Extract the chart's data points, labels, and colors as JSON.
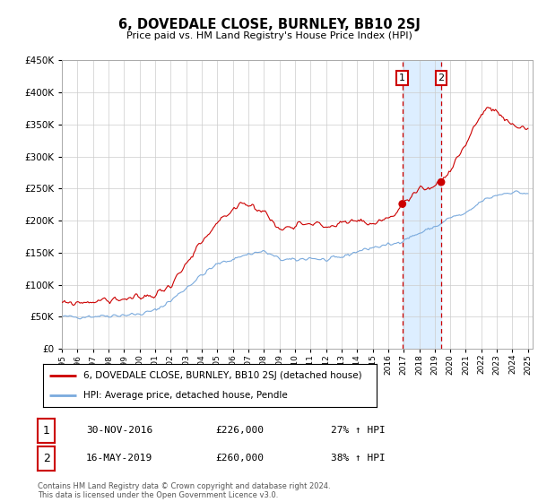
{
  "title": "6, DOVEDALE CLOSE, BURNLEY, BB10 2SJ",
  "subtitle": "Price paid vs. HM Land Registry's House Price Index (HPI)",
  "red_label": "6, DOVEDALE CLOSE, BURNLEY, BB10 2SJ (detached house)",
  "blue_label": "HPI: Average price, detached house, Pendle",
  "transaction1_date": "30-NOV-2016",
  "transaction1_price": 226000,
  "transaction1_hpi": "27% ↑ HPI",
  "transaction2_date": "16-MAY-2019",
  "transaction2_price": 260000,
  "transaction2_hpi": "38% ↑ HPI",
  "footer": "Contains HM Land Registry data © Crown copyright and database right 2024.\nThis data is licensed under the Open Government Licence v3.0.",
  "ylim": [
    0,
    450000
  ],
  "yticks": [
    0,
    50000,
    100000,
    150000,
    200000,
    250000,
    300000,
    350000,
    400000,
    450000
  ],
  "year_start": 1995,
  "year_end": 2025,
  "red_color": "#cc0000",
  "blue_color": "#7aaadd",
  "dot_color": "#cc0000",
  "vline_color": "#cc0000",
  "highlight_color": "#ddeeff",
  "background_color": "#ffffff",
  "grid_color": "#cccccc"
}
